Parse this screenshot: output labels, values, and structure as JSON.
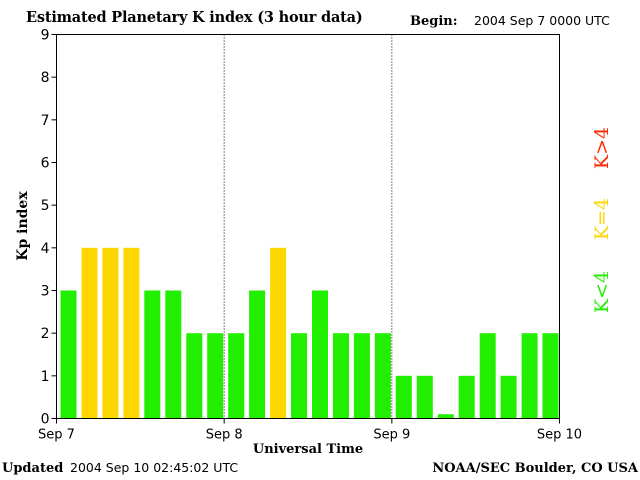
{
  "header": {
    "title": "Estimated Planetary K index (3 hour data)",
    "begin_label": "Begin:",
    "begin_value": "2004 Sep 7 0000 UTC"
  },
  "footer": {
    "updated_label": "Updated",
    "updated_value": "2004 Sep 10 02:45:02 UTC",
    "credit": "NOAA/SEC Boulder, CO USA"
  },
  "legend": {
    "high": {
      "label": "K>4",
      "color": "#ff2a00"
    },
    "equal": {
      "label": "K=4",
      "color": "#ffd700"
    },
    "low": {
      "label": "K<4",
      "color": "#22ee00"
    }
  },
  "chart_data": {
    "type": "bar",
    "title": "Estimated Planetary K index (3 hour data)",
    "xlabel": "Universal Time",
    "ylabel": "Kp index",
    "ylim": [
      0,
      9
    ],
    "yticks": [
      0,
      1,
      2,
      3,
      4,
      5,
      6,
      7,
      8,
      9
    ],
    "x_tick_labels": [
      "Sep 7",
      "Sep 8",
      "Sep 9",
      "Sep 10"
    ],
    "day_dividers": [
      "Sep 8",
      "Sep 9"
    ],
    "bar_interval_hours": 3,
    "values": [
      3,
      4,
      4,
      4,
      3,
      3,
      2,
      2,
      2,
      3,
      4,
      2,
      3,
      2,
      2,
      2,
      1,
      1,
      0.1,
      1,
      2,
      1,
      2,
      2
    ],
    "colors": {
      "low": "#22ee00",
      "equal": "#ffd700",
      "high": "#ff2a00"
    }
  }
}
